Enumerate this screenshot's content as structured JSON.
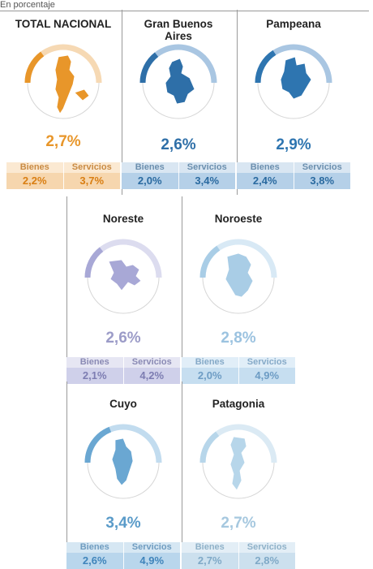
{
  "subtitle": "En porcentaje",
  "labels": {
    "bienes": "Bienes",
    "servicios": "Servicios"
  },
  "regions": [
    {
      "key": "total",
      "name": "TOTAL NACIONAL",
      "total": "2,7%",
      "bienes": "2,2%",
      "servicios": "3,7%",
      "level": 0.3,
      "colors": {
        "accent": "#e8962a",
        "text": "#e8962a",
        "light": "#f6d9b4",
        "hdr_bg": "#fbe9d2",
        "hdr_text": "#c98b44",
        "val_bg": "#f6d6ae",
        "val_text": "#d97e12"
      }
    },
    {
      "key": "gba",
      "name": "Gran Buenos Aires",
      "total": "2,6%",
      "bienes": "2,0%",
      "servicios": "3,4%",
      "level": 0.29,
      "colors": {
        "accent": "#2e6fa8",
        "text": "#2e6fa8",
        "light": "#a9c6e2",
        "hdr_bg": "#d9e6f2",
        "hdr_text": "#6b8fae",
        "val_bg": "#b5d0e8",
        "val_text": "#2a6aa0"
      }
    },
    {
      "key": "pampeana",
      "name": "Pampeana",
      "total": "2,9%",
      "bienes": "2,4%",
      "servicios": "3,8%",
      "level": 0.32,
      "colors": {
        "accent": "#2e75b0",
        "text": "#2e75b0",
        "light": "#a9c6e2",
        "hdr_bg": "#d9e6f2",
        "hdr_text": "#6b8fae",
        "val_bg": "#b5d0e8",
        "val_text": "#2a6aa0"
      }
    },
    {
      "key": "noreste",
      "name": "Noreste",
      "total": "2,6%",
      "bienes": "2,1%",
      "servicios": "4,2%",
      "level": 0.29,
      "colors": {
        "accent": "#a8a8d6",
        "text": "#9c9cc8",
        "light": "#dcdcef",
        "hdr_bg": "#e6e6f3",
        "hdr_text": "#8a8ab4",
        "val_bg": "#cfd0ea",
        "val_text": "#7d7db2"
      }
    },
    {
      "key": "noroeste",
      "name": "Noroeste",
      "total": "2,8%",
      "bienes": "2,0%",
      "servicios": "4,9%",
      "level": 0.31,
      "colors": {
        "accent": "#a9cde6",
        "text": "#9cc3e0",
        "light": "#d8e9f5",
        "hdr_bg": "#e1eef8",
        "hdr_text": "#86aac8",
        "val_bg": "#c6def0",
        "val_text": "#6d9cc4"
      }
    },
    {
      "key": "cuyo",
      "name": "Cuyo",
      "total": "3,4%",
      "bienes": "2,6%",
      "servicios": "4,9%",
      "level": 0.38,
      "colors": {
        "accent": "#6aa7d2",
        "text": "#5a9bc9",
        "light": "#c2dcef",
        "hdr_bg": "#d6e7f3",
        "hdr_text": "#6f9cc0",
        "val_bg": "#b9d6ec",
        "val_text": "#3f84bb"
      }
    },
    {
      "key": "patagonia",
      "name": "Patagonia",
      "total": "2,7%",
      "bienes": "2,7%",
      "servicios": "2,8%",
      "level": 0.3,
      "colors": {
        "accent": "#b7d6ea",
        "text": "#a6c8df",
        "light": "#dbeaf4",
        "hdr_bg": "#e3eef6",
        "hdr_text": "#8fb1c8",
        "val_bg": "#cce0ee",
        "val_text": "#7fa9c7"
      }
    }
  ]
}
